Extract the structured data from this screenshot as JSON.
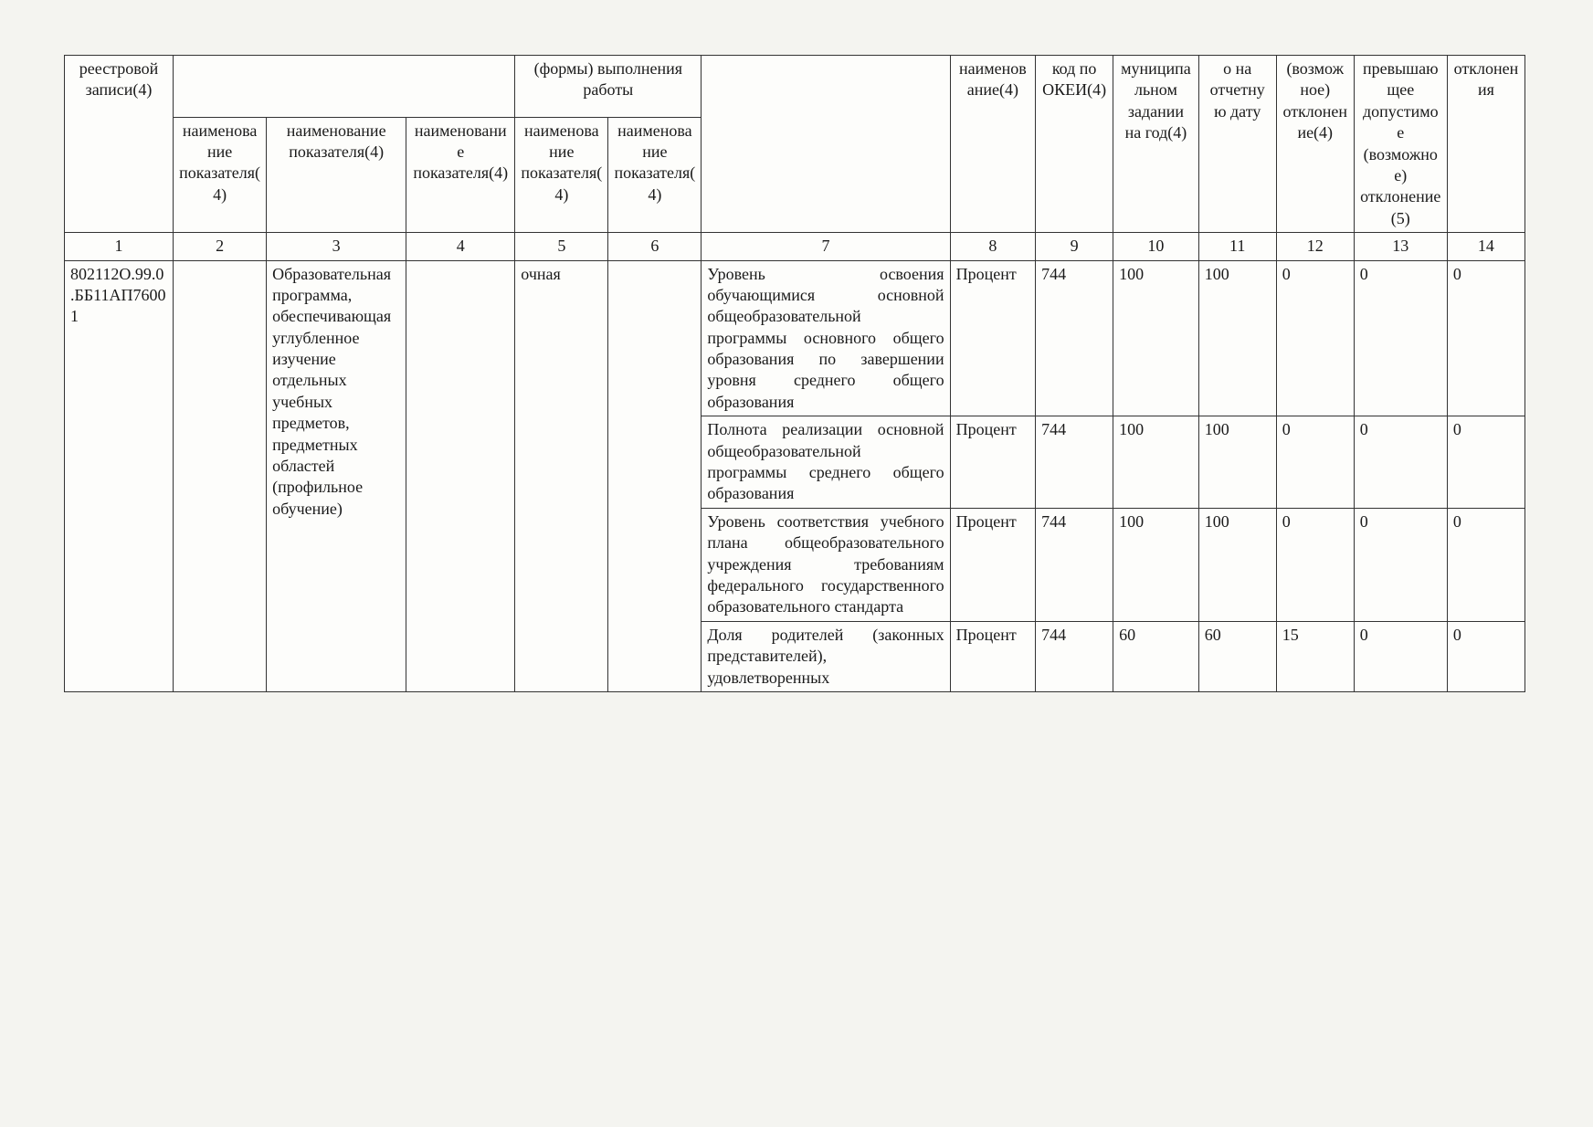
{
  "header": {
    "col1": "реестровой записи(4)",
    "group25_top": "(формы) выполнения работы",
    "col2": "наименование показателя(4)",
    "col3": "наименование показателя(4)",
    "col4": "наименование показателя(4)",
    "col5": "наименование показателя(4)",
    "col6": "наименование показателя(4)",
    "col8": "наименование(4)",
    "col9": "код по ОКЕИ(4)",
    "col10_top": "муниципальном задании на год(4)",
    "col11_top": "о на отчетную дату",
    "col12_top": "(возможное) отклонение(4)",
    "col13_top": "превышающее допустимое (возможное) отклонение(5)",
    "col14_top": "отклонения"
  },
  "colnums": {
    "c1": "1",
    "c2": "2",
    "c3": "3",
    "c4": "4",
    "c5": "5",
    "c6": "6",
    "c7": "7",
    "c8": "8",
    "c9": "9",
    "c10": "10",
    "c11": "11",
    "c12": "12",
    "c13": "13",
    "c14": "14"
  },
  "body": {
    "record_id": "802112О.99.0.ББ11АП76001",
    "program": "Образовательная программа, обеспечивающая углубленное изучение отдельных учебных предметов, предметных областей (профильное обучение)",
    "form": "очная",
    "rows": [
      {
        "indicator": "Уровень освоения обучающимися основной общеобразовательной программы основного общего образования по завершении уровня среднего общего образования",
        "unit_name": "Процент",
        "unit_code": "744",
        "plan": "100",
        "fact": "100",
        "dev": "0",
        "excess": "0",
        "reason": "0"
      },
      {
        "indicator": "Полнота реализации основной общеобразовательной программы среднего общего образования",
        "unit_name": "Процент",
        "unit_code": "744",
        "plan": "100",
        "fact": "100",
        "dev": "0",
        "excess": "0",
        "reason": "0"
      },
      {
        "indicator": "Уровень соответствия учебного плана общеобразовательного учреждения требованиям федерального государственного образовательного стандарта",
        "unit_name": "Процент",
        "unit_code": "744",
        "plan": "100",
        "fact": "100",
        "dev": "0",
        "excess": "0",
        "reason": "0"
      },
      {
        "indicator": "Доля родителей (законных представителей), удовлетворенных",
        "unit_name": "Процент",
        "unit_code": "744",
        "plan": "60",
        "fact": "60",
        "dev": "15",
        "excess": "0",
        "reason": "0"
      }
    ]
  },
  "style": {
    "font_family": "Times New Roman",
    "font_size_pt": 14,
    "border_color": "#333333",
    "background": "#fdfdfb",
    "page_bg": "#f4f4f0",
    "text_color": "#1a1a1a"
  }
}
